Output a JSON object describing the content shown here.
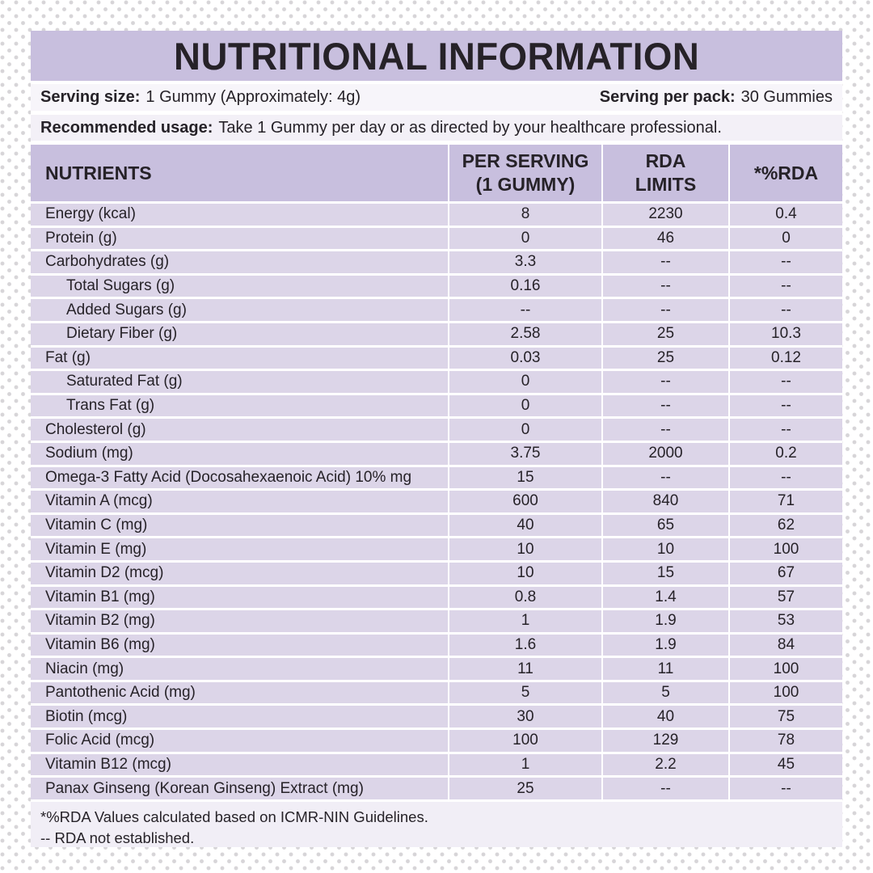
{
  "header": {
    "title": "NUTRITIONAL INFORMATION"
  },
  "serving": {
    "size_label": "Serving size:",
    "size_value": "1 Gummy (Approximately: 4g)",
    "per_pack_label": "Serving per pack:",
    "per_pack_value": "30 Gummies"
  },
  "usage": {
    "label": "Recommended usage:",
    "value": "Take 1 Gummy per day or as directed by your healthcare professional."
  },
  "table": {
    "columns": [
      "NUTRIENTS",
      "PER SERVING\n(1 GUMMY)",
      "RDA\nLIMITS",
      "*%RDA"
    ],
    "rows": [
      {
        "label": "Energy (kcal)",
        "indent": false,
        "per_serving": "8",
        "rda_limit": "2230",
        "rda_pct": "0.4"
      },
      {
        "label": "Protein (g)",
        "indent": false,
        "per_serving": "0",
        "rda_limit": "46",
        "rda_pct": "0"
      },
      {
        "label": "Carbohydrates (g)",
        "indent": false,
        "per_serving": "3.3",
        "rda_limit": "--",
        "rda_pct": "--"
      },
      {
        "label": "Total Sugars (g)",
        "indent": true,
        "per_serving": "0.16",
        "rda_limit": "--",
        "rda_pct": "--"
      },
      {
        "label": "Added Sugars (g)",
        "indent": true,
        "per_serving": "--",
        "rda_limit": "--",
        "rda_pct": "--"
      },
      {
        "label": "Dietary Fiber (g)",
        "indent": true,
        "per_serving": "2.58",
        "rda_limit": "25",
        "rda_pct": "10.3"
      },
      {
        "label": "Fat (g)",
        "indent": false,
        "per_serving": "0.03",
        "rda_limit": "25",
        "rda_pct": "0.12"
      },
      {
        "label": "Saturated Fat (g)",
        "indent": true,
        "per_serving": "0",
        "rda_limit": "--",
        "rda_pct": "--"
      },
      {
        "label": "Trans Fat (g)",
        "indent": true,
        "per_serving": "0",
        "rda_limit": "--",
        "rda_pct": "--"
      },
      {
        "label": "Cholesterol (g)",
        "indent": false,
        "per_serving": "0",
        "rda_limit": "--",
        "rda_pct": "--"
      },
      {
        "label": "Sodium (mg)",
        "indent": false,
        "per_serving": "3.75",
        "rda_limit": "2000",
        "rda_pct": "0.2"
      },
      {
        "label": "Omega-3 Fatty Acid (Docosahexaenoic Acid) 10% mg",
        "indent": false,
        "per_serving": "15",
        "rda_limit": "--",
        "rda_pct": "--"
      },
      {
        "label": "Vitamin A (mcg)",
        "indent": false,
        "per_serving": "600",
        "rda_limit": "840",
        "rda_pct": "71"
      },
      {
        "label": "Vitamin C (mg)",
        "indent": false,
        "per_serving": "40",
        "rda_limit": "65",
        "rda_pct": "62"
      },
      {
        "label": "Vitamin E (mg)",
        "indent": false,
        "per_serving": "10",
        "rda_limit": "10",
        "rda_pct": "100"
      },
      {
        "label": "Vitamin D2 (mcg)",
        "indent": false,
        "per_serving": "10",
        "rda_limit": "15",
        "rda_pct": "67"
      },
      {
        "label": "Vitamin B1 (mg)",
        "indent": false,
        "per_serving": "0.8",
        "rda_limit": "1.4",
        "rda_pct": "57"
      },
      {
        "label": "Vitamin B2 (mg)",
        "indent": false,
        "per_serving": "1",
        "rda_limit": "1.9",
        "rda_pct": "53"
      },
      {
        "label": "Vitamin B6 (mg)",
        "indent": false,
        "per_serving": "1.6",
        "rda_limit": "1.9",
        "rda_pct": "84"
      },
      {
        "label": "Niacin (mg)",
        "indent": false,
        "per_serving": "11",
        "rda_limit": "11",
        "rda_pct": "100"
      },
      {
        "label": "Pantothenic Acid (mg)",
        "indent": false,
        "per_serving": "5",
        "rda_limit": "5",
        "rda_pct": "100"
      },
      {
        "label": "Biotin (mcg)",
        "indent": false,
        "per_serving": "30",
        "rda_limit": "40",
        "rda_pct": "75"
      },
      {
        "label": "Folic Acid (mcg)",
        "indent": false,
        "per_serving": "100",
        "rda_limit": "129",
        "rda_pct": "78"
      },
      {
        "label": "Vitamin B12 (mcg)",
        "indent": false,
        "per_serving": "1",
        "rda_limit": "2.2",
        "rda_pct": "45"
      },
      {
        "label": "Panax Ginseng (Korean Ginseng) Extract (mg)",
        "indent": false,
        "per_serving": "25",
        "rda_limit": "--",
        "rda_pct": "--"
      }
    ]
  },
  "footnotes": [
    "*%RDA Values calculated based on ICMR-NIN Guidelines.",
    "-- RDA not established."
  ],
  "colors": {
    "band_lavender": "#c8bfde",
    "row_lavender": "#dcd5e8",
    "serving_band_bg": "#f7f5fa",
    "usage_band_bg": "#f3f0f7",
    "notes_bg": "#f1eef6",
    "dot_color": "#d7d5d8",
    "text": "#262228"
  }
}
